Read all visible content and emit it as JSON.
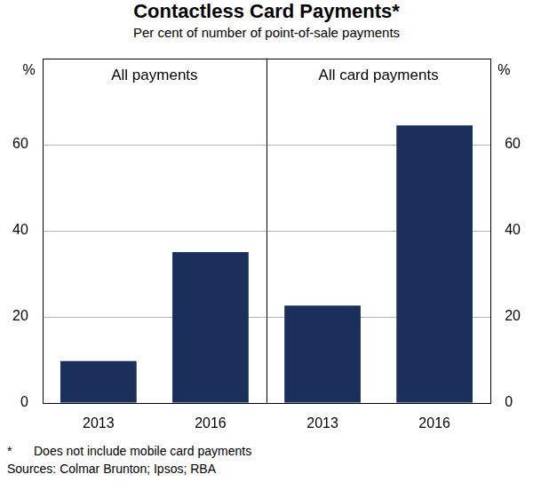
{
  "title": "Contactless Card Payments*",
  "subtitle": "Per cent of number of point-of-sale payments",
  "footnote": {
    "marker": "*",
    "text": "Does not include mobile card payments"
  },
  "source": "Sources: Colmar Brunton; Ipsos; RBA",
  "chart_data": [
    {
      "type": "bar",
      "title": "All payments",
      "ylabel": "%",
      "categories": [
        "2013",
        "2016"
      ],
      "values": [
        9.7,
        35
      ],
      "color": "#1a2f5a",
      "ylim": [
        0,
        80
      ],
      "yticks": [
        0,
        20,
        40,
        60
      ],
      "grid": true
    },
    {
      "type": "bar",
      "title": "All card payments",
      "ylabel": "%",
      "categories": [
        "2013",
        "2016"
      ],
      "values": [
        22.6,
        64.4
      ],
      "color": "#1a2f5a",
      "ylim": [
        0,
        80
      ],
      "yticks": [
        0,
        20,
        40,
        60
      ],
      "grid": true
    }
  ]
}
